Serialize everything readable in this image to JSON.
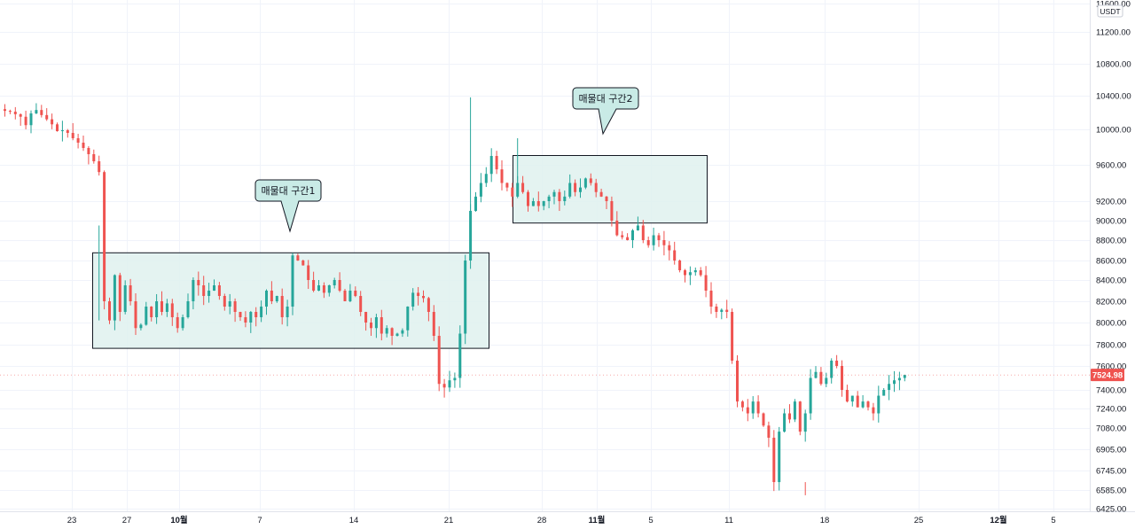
{
  "chart_data": {
    "type": "candlestick",
    "symbol_quote": "USDT",
    "y_scale": "log",
    "ylim": [
      6425,
      11600
    ],
    "y_ticks": [
      "11600.00",
      "11200.00",
      "10800.00",
      "10400.00",
      "10000.00",
      "9600.00",
      "9200.00",
      "9000.00",
      "8800.00",
      "8600.00",
      "8400.00",
      "8200.00",
      "8000.00",
      "7800.00",
      "7600.00",
      "7400.00",
      "7240.00",
      "7080.00",
      "6905.00",
      "6745.00",
      "6585.00",
      "6425.00"
    ],
    "x_ticks": [
      "23",
      "27",
      "10월",
      "7",
      "14",
      "21",
      "28",
      "11월",
      "5",
      "11",
      "18",
      "25",
      "12월",
      "5"
    ],
    "x_ticks_bold": [
      "10월",
      "11월",
      "12월"
    ],
    "last_price": "7524.98",
    "colors": {
      "up": "#26a69a",
      "down": "#ef5350",
      "zone_fill": "#dff1ef",
      "last_price_bg": "#ef5350"
    },
    "zones": [
      {
        "label": "매물대 구간1",
        "from_price": 7770,
        "to_price": 8680
      },
      {
        "label": "매물대 구간2",
        "from_price": 8980,
        "to_price": 9710
      }
    ],
    "close_series": [
      10220,
      10210,
      10180,
      10150,
      10050,
      10190,
      10230,
      10170,
      10120,
      10060,
      9980,
      9990,
      9960,
      9900,
      9850,
      9790,
      9720,
      9640,
      9520,
      8200,
      8020,
      8450,
      8100,
      8350,
      8200,
      7950,
      7980,
      8150,
      8050,
      8200,
      8100,
      8180,
      8050,
      7950,
      8050,
      8200,
      8400,
      8350,
      8250,
      8300,
      8350,
      8250,
      8150,
      8200,
      8100,
      8050,
      8000,
      8100,
      8050,
      8150,
      8300,
      8200,
      8250,
      8050,
      8150,
      8650,
      8600,
      8550,
      8400,
      8300,
      8350,
      8280,
      8350,
      8400,
      8300,
      8200,
      8300,
      8250,
      8100,
      8000,
      7950,
      8050,
      7900,
      7950,
      7880,
      7900,
      7930,
      8150,
      8280,
      8250,
      8230,
      8100,
      7880,
      7450,
      7420,
      7480,
      7500,
      7900,
      8600,
      9100,
      9250,
      9400,
      9500,
      9700,
      9550,
      9400,
      9350,
      9250,
      9400,
      9300,
      9150,
      9200,
      9150,
      9200,
      9250,
      9300,
      9200,
      9250,
      9400,
      9300,
      9350,
      9450,
      9400,
      9300,
      9250,
      9200,
      9000,
      8850,
      8830,
      8800,
      8900,
      8950,
      8800,
      8750,
      8850,
      8800,
      8750,
      8700,
      8600,
      8500,
      8450,
      8480,
      8500,
      8450,
      8300,
      8150,
      8100,
      8120,
      8100,
      7650,
      7300,
      7250,
      7200,
      7300,
      7200,
      7100,
      7000,
      6650,
      7050,
      7200,
      7150,
      7300,
      7050,
      7200,
      7500,
      7550,
      7450,
      7500,
      7650,
      7600,
      7400,
      7300,
      7350,
      7250,
      7300,
      7250,
      7200,
      7350,
      7400,
      7450,
      7480,
      7500,
      7525
    ]
  }
}
